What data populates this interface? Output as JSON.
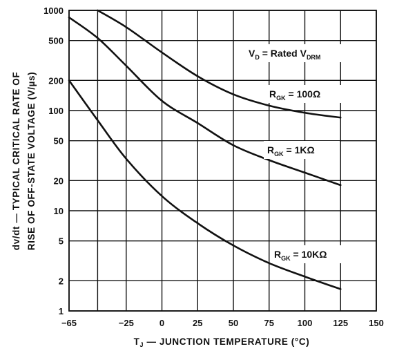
{
  "chart_data": {
    "type": "line",
    "title": "",
    "xlabel": "T_J — JUNCTION TEMPERATURE (°C)",
    "xlabel_parts": [
      "T",
      "J",
      " — JUNCTION TEMPERATURE (°C)"
    ],
    "ylabel_lines": [
      "dv/dt — TYPICAL CRITICAL RATE OF",
      "RISE OF OFF-STATE VOLTAGE (V/µs)"
    ],
    "xlim": [
      -65,
      150
    ],
    "ylim": [
      1,
      1000
    ],
    "yscale": "log",
    "grid": true,
    "x_ticks": [
      -65,
      -25,
      0,
      25,
      50,
      75,
      100,
      125,
      150
    ],
    "x_tick_labels": [
      "−65",
      "−25",
      "0",
      "25",
      "50",
      "75",
      "100",
      "125",
      "150"
    ],
    "y_ticks": [
      1,
      2,
      5,
      10,
      20,
      50,
      100,
      200,
      500,
      1000
    ],
    "y_tick_labels": [
      "1",
      "2",
      "5",
      "10",
      "20",
      "50",
      "100",
      "200",
      "500",
      "1000"
    ],
    "x_gridlines": [
      -65,
      -45,
      -25,
      0,
      25,
      50,
      75,
      100,
      125,
      150
    ],
    "series": [
      {
        "name": "RGK = 100Ω",
        "label_parts": [
          "R",
          "GK",
          " = 100Ω"
        ],
        "x": [
          -45,
          -25,
          0,
          25,
          50,
          75,
          100,
          125
        ],
        "y": [
          1000,
          680,
          380,
          220,
          145,
          112,
          95,
          85
        ]
      },
      {
        "name": "RGK = 1KΩ",
        "label_parts": [
          "R",
          "GK",
          " = 1KΩ"
        ],
        "x": [
          -65,
          -45,
          -25,
          0,
          25,
          50,
          75,
          100,
          125
        ],
        "y": [
          850,
          530,
          280,
          125,
          75,
          45,
          32,
          24,
          18
        ]
      },
      {
        "name": "RGK = 10KΩ",
        "label_parts": [
          "R",
          "GK",
          " = 10KΩ"
        ],
        "x": [
          -65,
          -45,
          -25,
          0,
          25,
          50,
          75,
          100,
          125
        ],
        "y": [
          200,
          80,
          33,
          14,
          7.5,
          4.5,
          3.0,
          2.2,
          1.65
        ]
      }
    ],
    "annotation": {
      "text": "VD = Rated VDRM",
      "parts": [
        "V",
        "D",
        " = Rated V",
        "DRM"
      ]
    }
  }
}
